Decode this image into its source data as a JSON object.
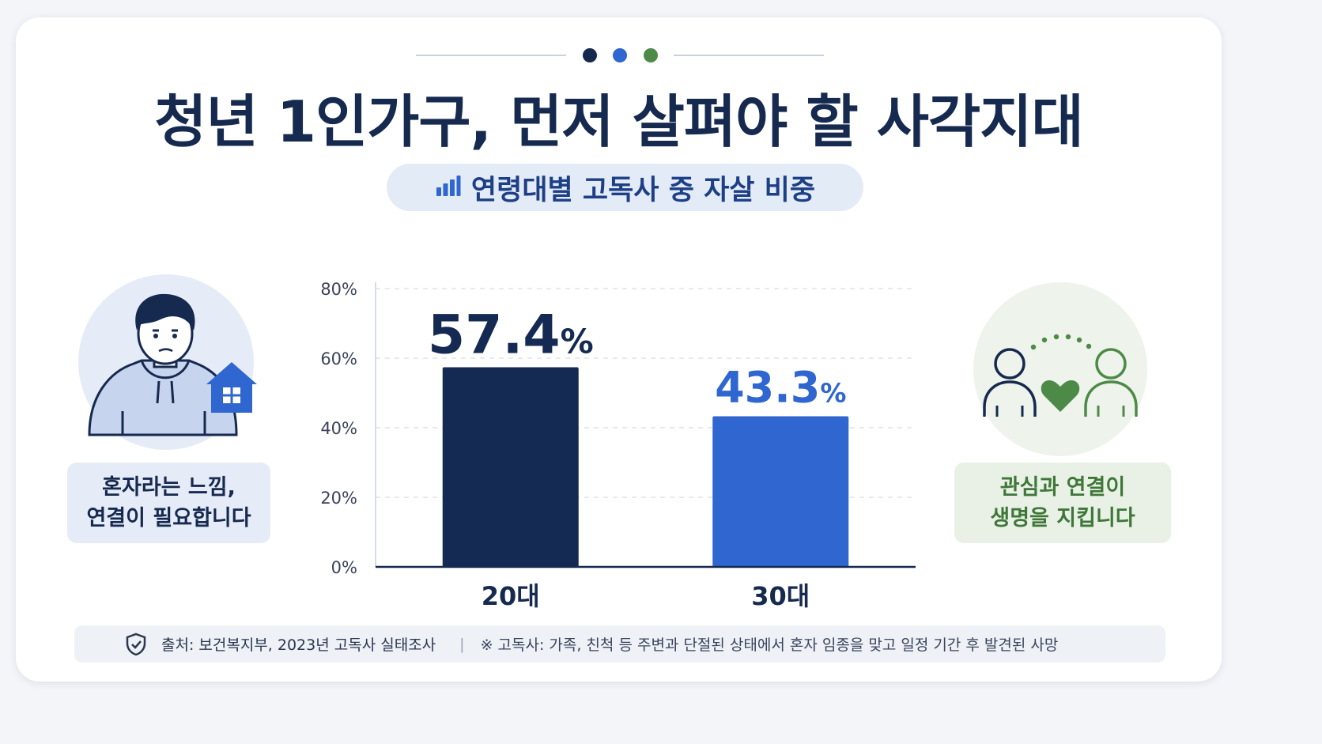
{
  "title": "청년 1인가구, 먼저 살펴야 할 사각지대",
  "subtitle": {
    "text": "연령대별 고독사 중 자살 비중",
    "icon": "bar-chart-icon"
  },
  "left_panel": {
    "icon": "person-hoodie-with-house-icon",
    "note_line1": "혼자라는 느낌,",
    "note_line2": "연결이 필요합니다"
  },
  "right_panel": {
    "icon": "two-people-heart-icon",
    "note_line1": "관심과 연결이",
    "note_line2": "생명을 지킵니다"
  },
  "footer": {
    "icon": "shield-check-icon",
    "source": "출처: 보건복지부, 2023년 고독사 실태조사",
    "separator": "|",
    "definition": "※ 고독사: 가족, 친척 등 주변과 단절된 상태에서 혼자 임종을 맞고 일정 기간 후 발견된 사망"
  },
  "colors": {
    "navy": "#142a52",
    "blue": "#2f66d0",
    "green": "#4e8a47",
    "text": "#16294f"
  },
  "chart_data": {
    "type": "bar",
    "title": "연령대별 고독사 중 자살 비중",
    "categories": [
      "20대",
      "30대"
    ],
    "values": [
      57.4,
      43.3
    ],
    "value_labels": [
      "57.4",
      "43.3"
    ],
    "value_suffix": "%",
    "bar_colors": [
      "#142a52",
      "#2f66d0"
    ],
    "ylim": [
      0,
      80
    ],
    "yticks": [
      "0%",
      "20%",
      "40%",
      "60%",
      "80%"
    ],
    "xlabel": "",
    "ylabel": "",
    "grid": true
  }
}
